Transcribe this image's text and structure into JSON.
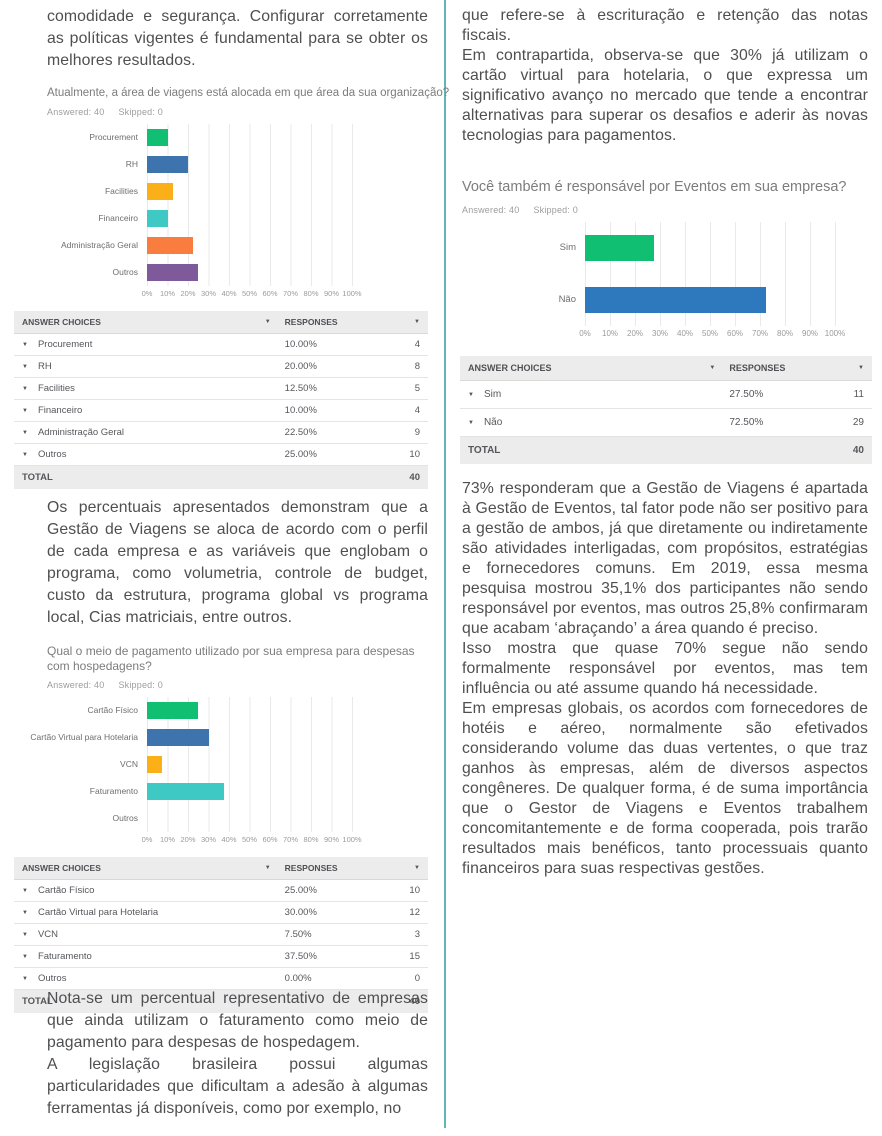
{
  "page": {
    "background": "#ffffff",
    "divider_color": "#5fb7b4"
  },
  "icons": {
    "sort": "▼",
    "expand": "▼"
  },
  "left": {
    "intro": "comodidade e segurança. Configurar corretamente as políticas vigentes é fundamental para se obter os melhores resultados.",
    "mid": "Os percentuais apresentados demonstram que a Gestão de Viagens se aloca de acordo com o perfil de cada empresa e as variáveis que englobam o programa, como volumetria, controle de budget, custo da estrutura, programa global vs programa local, Cias matriciais, entre outros.",
    "outro_p1": "Nota-se um percentual representativo de empresas que ainda utilizam o faturamento como meio de pagamento para despesas de hospedagem.",
    "outro_p2": "A legislação brasileira possui algumas particularidades que dificultam a adesão à algumas ferramentas já disponíveis, como por exemplo, no"
  },
  "right": {
    "intro_p1": "que refere-se à escrituração e retenção das notas fiscais.",
    "intro_p2": "Em contrapartida, observa-se que 30% já utilizam o cartão virtual para hotelaria, o que expressa um significativo avanço no mercado que tende a encontrar alternativas para superar os desafios e aderir às novas tecnologias para pagamentos.",
    "body_p1": "73% responderam que a Gestão de Viagens é apartada à Gestão de Eventos, tal fator pode não ser positivo para a gestão de ambos, já que diretamente ou indiretamente são atividades interligadas, com propósitos, estratégias e fornecedores comuns. Em 2019, essa mesma pesquisa mostrou 35,1% dos participantes não sendo responsável por eventos, mas outros 25,8% confirmaram que acabam ‘abraçando’ a área quando é preciso.",
    "body_p2": "Isso mostra que quase 70% segue não sendo formalmente responsável por eventos, mas tem influência ou até assume quando há necessidade.",
    "body_p3": "Em empresas globais, os acordos com fornecedores de hotéis e aéreo, normalmente são efetivados considerando volume das duas vertentes, o que traz ganhos às empresas, além de diversos aspectos congêneres. De qualquer forma, é de suma importância que o Gestor de Viagens e Eventos trabalhem concomitantemente e de forma cooperada, pois trarão resultados mais benéficos, tanto processuais quanto financeiros para suas respectivas gestões."
  },
  "axis_ticks": [
    "0%",
    "10%",
    "20%",
    "30%",
    "40%",
    "50%",
    "60%",
    "70%",
    "80%",
    "90%",
    "100%"
  ],
  "chart_data": [
    {
      "type": "bar",
      "orientation": "horizontal",
      "title": "Atualmente, a área de viagens está alocada em que área da sua organização?",
      "answered": "Answered: 40",
      "skipped": "Skipped: 0",
      "xlim": [
        0,
        100
      ],
      "grid": true,
      "categories": [
        "Procurement",
        "RH",
        "Facilities",
        "Financeiro",
        "Administração Geral",
        "Outros"
      ],
      "values": [
        10,
        20,
        12.5,
        10,
        22.5,
        25
      ],
      "bar_colors": [
        "#10bf71",
        "#3d74ae",
        "#fbb017",
        "#3fc9c4",
        "#f87d3f",
        "#7f5a9a"
      ],
      "table": {
        "col1": "ANSWER CHOICES",
        "col2": "RESPONSES",
        "rows": [
          {
            "choice": "Procurement",
            "pct": "10.00%",
            "count": "4"
          },
          {
            "choice": "RH",
            "pct": "20.00%",
            "count": "8"
          },
          {
            "choice": "Facilities",
            "pct": "12.50%",
            "count": "5"
          },
          {
            "choice": "Financeiro",
            "pct": "10.00%",
            "count": "4"
          },
          {
            "choice": "Administração Geral",
            "pct": "22.50%",
            "count": "9"
          },
          {
            "choice": "Outros",
            "pct": "25.00%",
            "count": "10"
          }
        ],
        "total_label": "TOTAL",
        "total": "40"
      }
    },
    {
      "type": "bar",
      "orientation": "horizontal",
      "title": "Qual o meio de pagamento utilizado por sua empresa para despesas com hospedagens?",
      "answered": "Answered: 40",
      "skipped": "Skipped: 0",
      "xlim": [
        0,
        100
      ],
      "grid": true,
      "categories": [
        "Cartão Físico",
        "Cartão Virtual para Hotelaria",
        "VCN",
        "Faturamento",
        "Outros"
      ],
      "values": [
        25,
        30,
        7.5,
        37.5,
        0
      ],
      "bar_colors": [
        "#10bf71",
        "#3d74ae",
        "#fbb017",
        "#3fc9c4",
        "#f87d3f"
      ],
      "table": {
        "col1": "ANSWER CHOICES",
        "col2": "RESPONSES",
        "rows": [
          {
            "choice": "Cartão Físico",
            "pct": "25.00%",
            "count": "10"
          },
          {
            "choice": "Cartão Virtual para Hotelaria",
            "pct": "30.00%",
            "count": "12"
          },
          {
            "choice": "VCN",
            "pct": "7.50%",
            "count": "3"
          },
          {
            "choice": "Faturamento",
            "pct": "37.50%",
            "count": "15"
          },
          {
            "choice": "Outros",
            "pct": "0.00%",
            "count": "0"
          }
        ],
        "total_label": "TOTAL",
        "total": "40"
      }
    },
    {
      "type": "bar",
      "orientation": "horizontal",
      "title": "Você também é responsável por Eventos em sua empresa?",
      "answered": "Answered: 40",
      "skipped": "Skipped: 0",
      "xlim": [
        0,
        100
      ],
      "grid": true,
      "categories": [
        "Sim",
        "Não"
      ],
      "values": [
        27.5,
        72.5
      ],
      "bar_colors": [
        "#10bf71",
        "#2e78bd"
      ],
      "table": {
        "col1": "ANSWER CHOICES",
        "col2": "RESPONSES",
        "rows": [
          {
            "choice": "Sim",
            "pct": "27.50%",
            "count": "11"
          },
          {
            "choice": "Não",
            "pct": "72.50%",
            "count": "29"
          }
        ],
        "total_label": "TOTAL",
        "total": "40"
      }
    }
  ]
}
